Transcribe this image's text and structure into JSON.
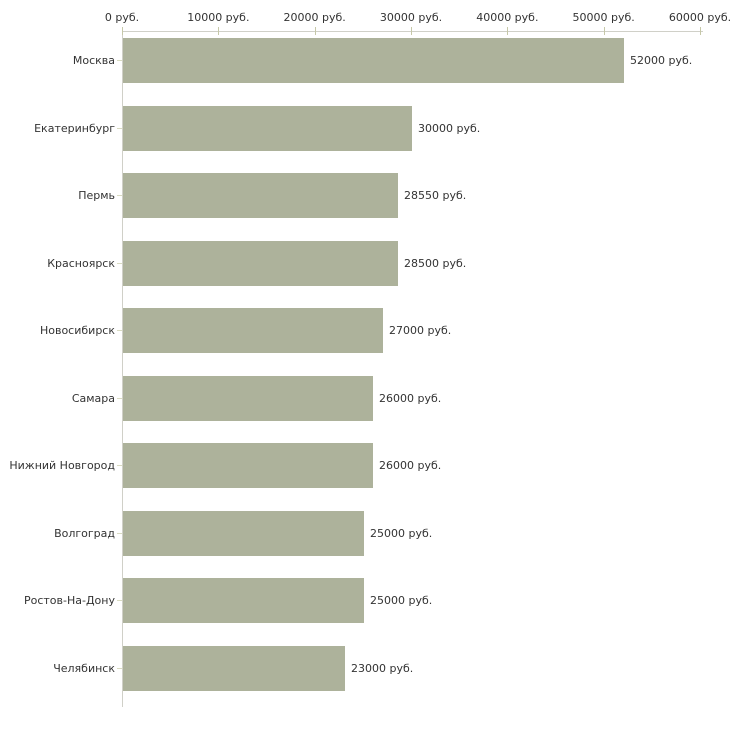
{
  "chart_data": {
    "type": "bar",
    "orientation": "horizontal",
    "categories": [
      "Москва",
      "Екатеринбург",
      "Пермь",
      "Красноярск",
      "Новосибирск",
      "Самара",
      "Нижний Новгород",
      "Волгоград",
      "Ростов-На-Дону",
      "Челябинск"
    ],
    "values": [
      52000,
      30000,
      28550,
      28500,
      27000,
      26000,
      26000,
      25000,
      25000,
      23000
    ],
    "value_labels": [
      "52000 руб.",
      "30000 руб.",
      "28550 руб.",
      "28500 руб.",
      "27000 руб.",
      "26000 руб.",
      "26000 руб.",
      "25000 руб.",
      "25000 руб.",
      "23000 руб."
    ],
    "x_ticks": [
      0,
      10000,
      20000,
      30000,
      40000,
      50000,
      60000
    ],
    "x_tick_labels": [
      "0 руб.",
      "10000 руб.",
      "20000 руб.",
      "30000 руб.",
      "40000 руб.",
      "50000 руб.",
      "60000 руб."
    ],
    "xlim": [
      0,
      60000
    ],
    "grid": false,
    "legend": null,
    "colors": {
      "bar": "#adb29b",
      "axis": "#d0d0c8",
      "x_tick": "#c6c8a8",
      "y_tick": "#d9dbc2",
      "text": "#333333",
      "background": "#ffffff"
    }
  }
}
